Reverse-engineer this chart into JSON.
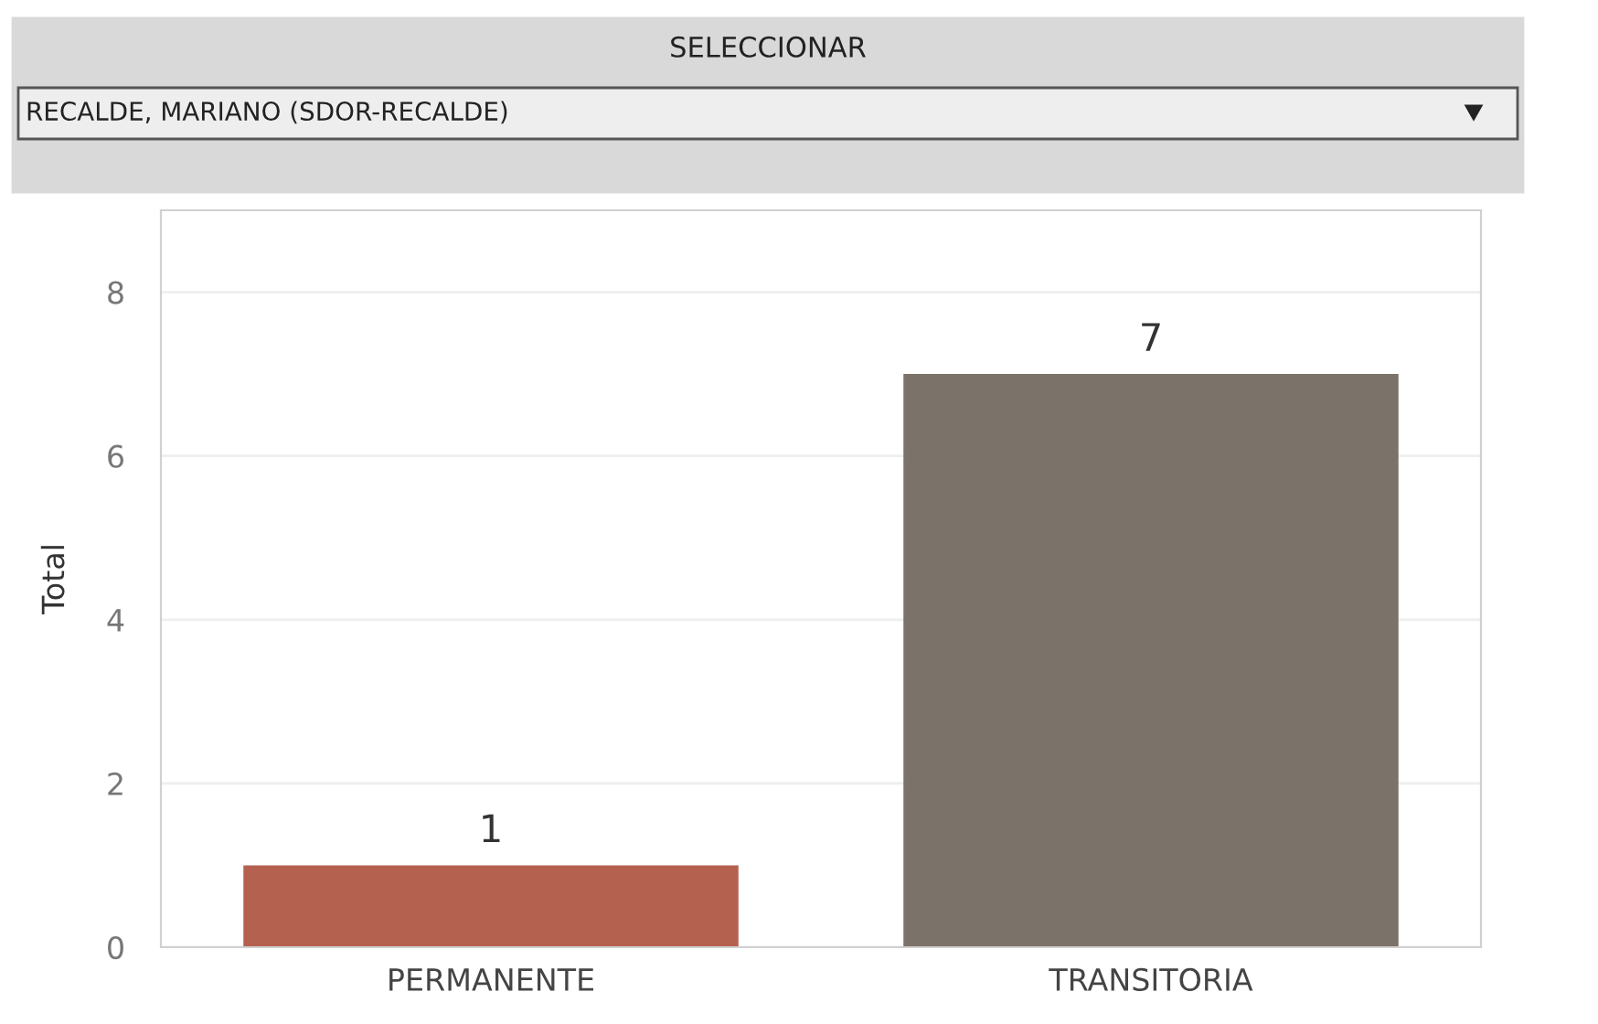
{
  "chart_data": {
    "type": "bar",
    "title": "SELECCIONAR",
    "annotations": [
      "RECALDE, MARIANO (SDOR-RECALDE)"
    ],
    "ylabel": "Total",
    "categories": [
      "PERMANENTE",
      "TRANSITORIA"
    ],
    "values": [
      1,
      7
    ],
    "colors": [
      "#b5614f",
      "#7b726a"
    ],
    "ylim": [
      0,
      9
    ],
    "yticks": [
      0,
      2,
      4,
      6,
      8
    ],
    "grid": "y",
    "data_labels": true
  }
}
